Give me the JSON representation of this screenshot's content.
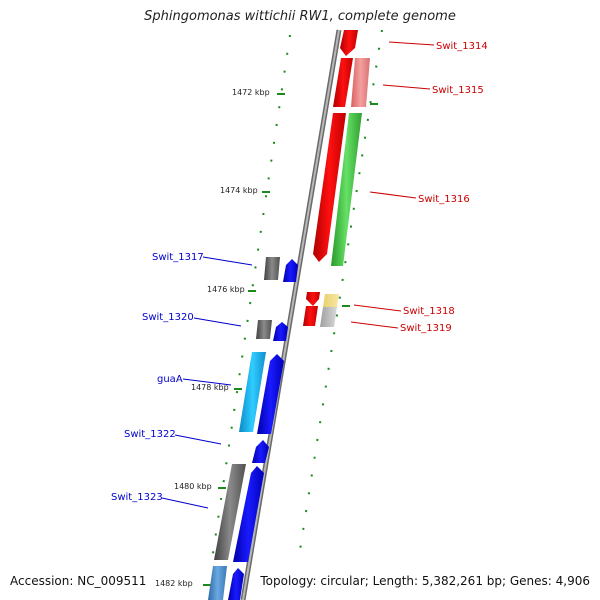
{
  "title": "Sphingomonas wittichii RW1, complete genome",
  "accession": "Accession: NC_009511",
  "topology": "Topology: circular; Length: 5,382,261 bp; Genes: 4,906",
  "ticks": [
    "1472 kbp",
    "1474 kbp",
    "1476 kbp",
    "1478 kbp",
    "1480 kbp",
    "1482 kbp"
  ],
  "genes_right": [
    "Swit_1314",
    "Swit_1315",
    "Swit_1316",
    "Swit_1318",
    "Swit_1319"
  ],
  "genes_left": [
    "Swit_1317",
    "Swit_1320",
    "guaA",
    "Swit_1322",
    "Swit_1323"
  ],
  "colors": {
    "right_label": "#cc0000",
    "left_label": "#0000cc",
    "backbone": "#8c8c8c",
    "tick_green": "#1a8a1a"
  }
}
